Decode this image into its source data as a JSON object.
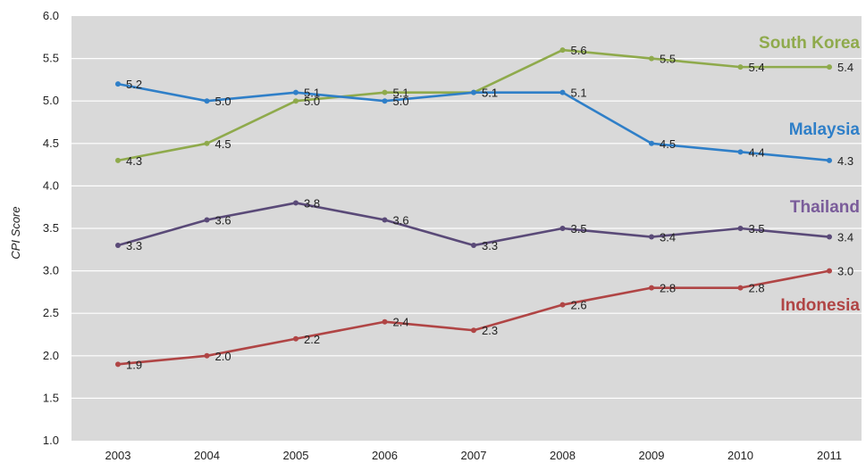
{
  "chart_data": {
    "type": "line",
    "title": "",
    "xlabel": "",
    "ylabel": "CPI Score",
    "ylim": [
      1.0,
      6.0
    ],
    "yticks": [
      "1.0",
      "1.5",
      "2.0",
      "2.5",
      "3.0",
      "3.5",
      "4.0",
      "4.5",
      "5.0",
      "5.5",
      "6.0"
    ],
    "categories": [
      "2003",
      "2004",
      "2005",
      "2006",
      "2007",
      "2008",
      "2009",
      "2010",
      "2011"
    ],
    "grid": "horizontal",
    "series": [
      {
        "name": "South Korea",
        "color": "#8faa4c",
        "values": [
          4.3,
          4.5,
          5.0,
          5.1,
          5.1,
          5.6,
          5.5,
          5.4,
          5.4
        ],
        "labels": [
          "4.3",
          "4.5",
          "5.0",
          "5.1",
          "5.1",
          "5.6",
          "5.5",
          "5.4",
          "5.4"
        ]
      },
      {
        "name": "Malaysia",
        "color": "#2f7fc8",
        "values": [
          5.2,
          5.0,
          5.1,
          5.0,
          5.1,
          5.1,
          4.5,
          4.4,
          4.3
        ],
        "labels": [
          "5.2",
          "5.0",
          "5.1",
          "5.0",
          "5.1",
          "5.1",
          "4.5",
          "4.4",
          "4.3"
        ]
      },
      {
        "name": "Thailand",
        "color": "#5a4a78",
        "values": [
          3.3,
          3.6,
          3.8,
          3.6,
          3.3,
          3.5,
          3.4,
          3.5,
          3.4
        ],
        "labels": [
          "3.3",
          "3.6",
          "3.8",
          "3.6",
          "3.3",
          "3.5",
          "3.4",
          "3.5",
          "3.4"
        ]
      },
      {
        "name": "Indonesia",
        "color": "#b04545",
        "values": [
          1.9,
          2.0,
          2.2,
          2.4,
          2.3,
          2.6,
          2.8,
          2.8,
          3.0
        ],
        "labels": [
          "1.9",
          "2.0",
          "2.2",
          "2.4",
          "2.3",
          "2.6",
          "2.8",
          "2.8",
          "3.0"
        ]
      }
    ],
    "colors": {
      "plot_background": "#d9d9d9",
      "gridline": "#ffffff",
      "series_label_south_korea": "#8faa4c",
      "series_label_malaysia": "#2f7fc8",
      "series_label_thailand": "#7a5c9a",
      "series_label_indonesia": "#b04545"
    }
  }
}
